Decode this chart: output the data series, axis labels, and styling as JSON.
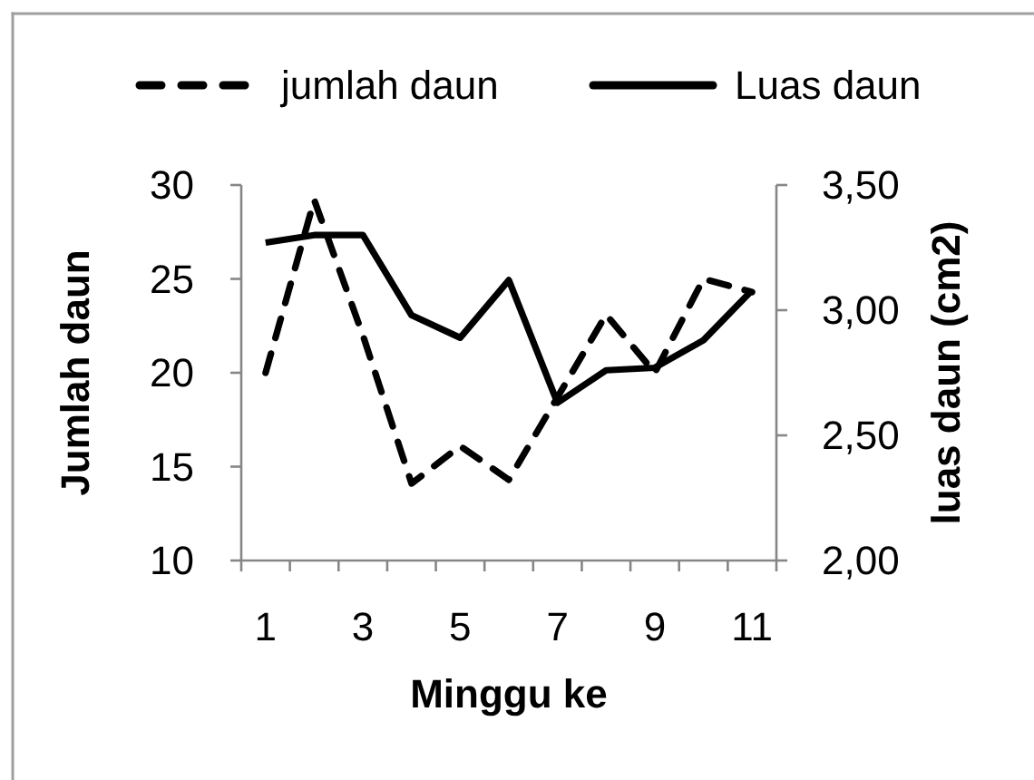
{
  "chart_data": {
    "type": "line",
    "categories": [
      "1",
      null,
      "3",
      null,
      "5",
      null,
      "7",
      null,
      "9",
      null,
      "11"
    ],
    "series": [
      {
        "name": "jumlah daun",
        "color": "#000000",
        "line_style": "dashed",
        "values": [
          20,
          29.2,
          22,
          14.1,
          16.1,
          14.3,
          18.7,
          23.1,
          20,
          25,
          24.3
        ]
      },
      {
        "name": "Luas daun",
        "color": "#000000",
        "line_style": "solid",
        "axis": "y2",
        "values": [
          3.27,
          3.3,
          3.3,
          2.98,
          2.89,
          3.12,
          2.63,
          2.76,
          2.77,
          2.88,
          3.08
        ]
      }
    ],
    "xlabel": "Minggu ke",
    "ylabel": "Jumlah daun",
    "y2label": "luas daun (cm2)",
    "ylim": [
      10,
      30
    ],
    "yticks": [
      10,
      15,
      20,
      25,
      30
    ],
    "y2lim": [
      2,
      3.5
    ],
    "y2ticks": [
      {
        "value": 2,
        "label": "2,00"
      },
      {
        "value": 2.5,
        "label": "2,50"
      },
      {
        "value": 3,
        "label": "3,00"
      },
      {
        "value": 3.5,
        "label": "3,50"
      }
    ],
    "legend": "top"
  }
}
